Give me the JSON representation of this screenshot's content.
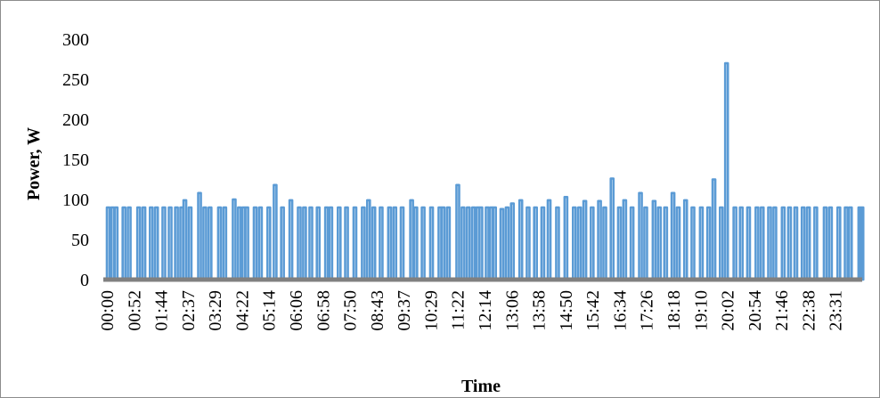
{
  "chart_data": {
    "type": "line",
    "title": "",
    "xlabel": "Time",
    "ylabel": "Power, W",
    "ylim": [
      0,
      300
    ],
    "yticks": [
      "0",
      "50",
      "100",
      "150",
      "200",
      "250",
      "300"
    ],
    "x_tick_labels": [
      "00:00",
      "00:52",
      "01:44",
      "02:37",
      "03:29",
      "04:22",
      "05:14",
      "06:06",
      "06:58",
      "07:50",
      "08:43",
      "09:37",
      "10:29",
      "11:22",
      "12:14",
      "13:06",
      "13:58",
      "14:50",
      "15:42",
      "16:34",
      "17:26",
      "18:18",
      "19:10",
      "20:02",
      "20:54",
      "21:46",
      "22:38",
      "23:31"
    ],
    "grid": false,
    "legend": "none",
    "series_color": "#5b9bd5",
    "baseline_color": "#808080",
    "series": [
      {
        "note_unit_x": "minutes",
        "x": [
          0,
          8,
          15,
          30,
          40,
          58,
          68,
          82,
          92,
          106,
          118,
          130,
          140,
          146,
          156,
          174,
          184,
          194,
          212,
          222,
          240,
          250,
          258,
          264,
          280,
          290,
          306,
          318,
          332,
          348,
          364,
          374,
          386,
          400,
          416,
          424,
          440,
          454,
          470,
          486,
          496,
          506,
          520,
          536,
          546,
          560,
          578,
          586,
          600,
          616,
          632,
          638,
          648,
          666,
          676,
          686,
          696,
          704,
          710,
          722,
          730,
          736,
          750,
          760,
          770,
          786,
          800,
          814,
          828,
          840,
          856,
          872,
          888,
          898,
          908,
          922,
          936,
          946,
          960,
          974,
          984,
          998,
          1014,
          1024,
          1040,
          1050,
          1062,
          1076,
          1086,
          1100,
          1114,
          1130,
          1144,
          1154,
          1168,
          1178,
          1194,
          1206,
          1220,
          1236,
          1246,
          1260,
          1270,
          1286,
          1298,
          1310,
          1324,
          1334,
          1348,
          1366,
          1376,
          1392,
          1406,
          1414,
          1432,
          1436
        ],
        "y": [
          90,
          90,
          90,
          90,
          90,
          90,
          90,
          90,
          90,
          90,
          90,
          90,
          90,
          99,
          90,
          108,
          90,
          90,
          90,
          90,
          100,
          90,
          90,
          90,
          90,
          90,
          90,
          118,
          90,
          99,
          90,
          90,
          90,
          90,
          90,
          90,
          90,
          90,
          90,
          90,
          99,
          90,
          90,
          90,
          90,
          90,
          99,
          90,
          90,
          90,
          90,
          90,
          90,
          118,
          90,
          90,
          90,
          90,
          90,
          90,
          90,
          90,
          88,
          90,
          95,
          99,
          90,
          90,
          90,
          99,
          90,
          103,
          90,
          90,
          98,
          90,
          98,
          90,
          126,
          90,
          99,
          90,
          108,
          90,
          98,
          90,
          90,
          108,
          90,
          99,
          90,
          90,
          90,
          125,
          90,
          270,
          90,
          90,
          90,
          90,
          90,
          90,
          90,
          90,
          90,
          90,
          90,
          90,
          90,
          90,
          90,
          90,
          90,
          90,
          90,
          90
        ]
      }
    ]
  }
}
